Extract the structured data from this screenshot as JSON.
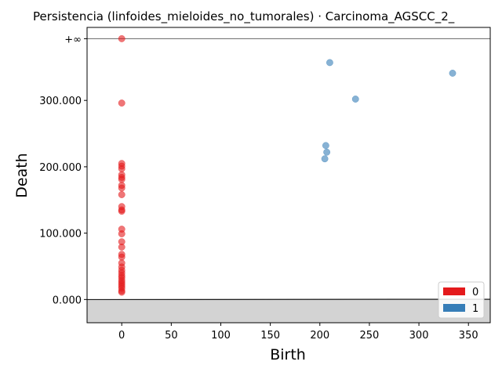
{
  "chart_data": {
    "type": "scatter",
    "title": "Persistencia (linfoides_mieloides_no_tumorales) · Carcinoma_AGSCC_2_",
    "xlabel": "Birth",
    "ylabel": "Death",
    "xlim": [
      -35,
      372
    ],
    "ylim": [
      -35000,
      410000
    ],
    "x_ticks": [
      0,
      50,
      100,
      150,
      200,
      250,
      300,
      350
    ],
    "x_tick_labels": [
      "0",
      "50",
      "100",
      "150",
      "200",
      "250",
      "300",
      "350"
    ],
    "y_ticks": [
      0,
      100000,
      200000,
      300000
    ],
    "y_tick_labels": [
      "0.000",
      "100.000",
      "200.000",
      "300.000"
    ],
    "infinity_label": "+∞",
    "infinity_value": 393000,
    "diagonal": true,
    "legend_position": "lower-right",
    "series": [
      {
        "name": "0",
        "color": "#e41a1c",
        "points": [
          [
            0,
            393000
          ],
          [
            0,
            296000
          ],
          [
            0,
            205000
          ],
          [
            0,
            201000
          ],
          [
            0,
            197000
          ],
          [
            0,
            188000
          ],
          [
            0,
            184000
          ],
          [
            0,
            181000
          ],
          [
            0,
            172000
          ],
          [
            0,
            168000
          ],
          [
            0,
            158000
          ],
          [
            0,
            140000
          ],
          [
            0,
            135000
          ],
          [
            0,
            133000
          ],
          [
            0,
            106000
          ],
          [
            0,
            99000
          ],
          [
            0,
            87000
          ],
          [
            0,
            79000
          ],
          [
            0,
            68000
          ],
          [
            0,
            64000
          ],
          [
            0,
            55000
          ],
          [
            0,
            49000
          ],
          [
            0,
            44000
          ],
          [
            0,
            40000
          ],
          [
            0,
            36000
          ],
          [
            0,
            33000
          ],
          [
            0,
            29000
          ],
          [
            0,
            26000
          ],
          [
            0,
            23000
          ],
          [
            0,
            20000
          ],
          [
            0,
            17000
          ],
          [
            0,
            13000
          ],
          [
            0,
            11000
          ]
        ]
      },
      {
        "name": "1",
        "color": "#377eb8",
        "points": [
          [
            210,
            357000
          ],
          [
            236,
            302000
          ],
          [
            334,
            341000
          ],
          [
            206,
            232000
          ],
          [
            207,
            222000
          ],
          [
            205,
            212000
          ]
        ]
      }
    ]
  }
}
